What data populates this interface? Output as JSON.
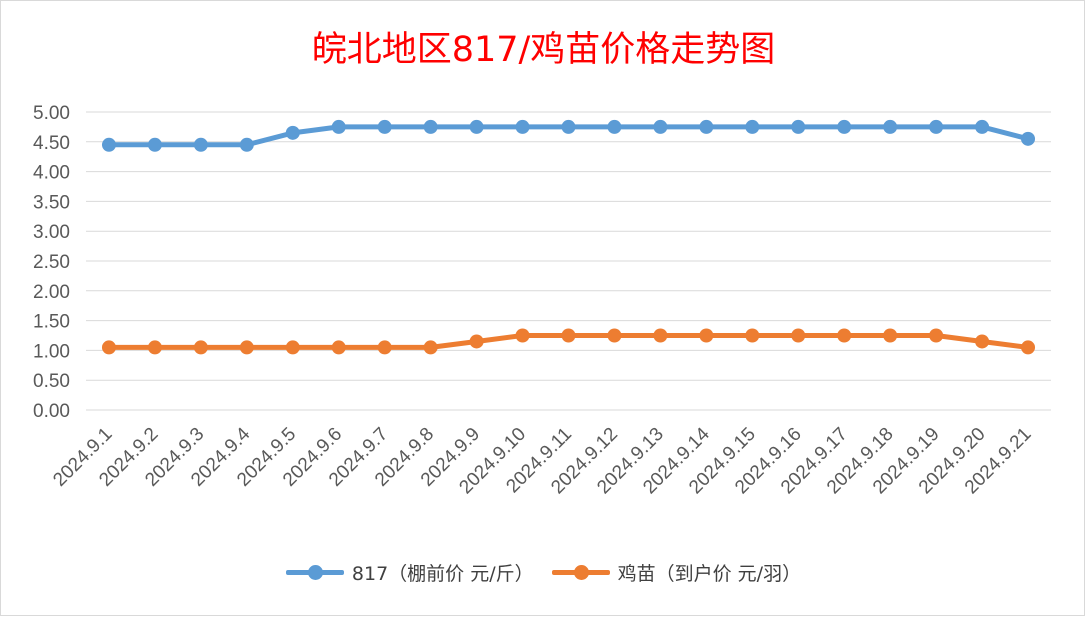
{
  "chart_data": {
    "type": "line",
    "title": "皖北地区817/鸡苗价格走势图",
    "categories": [
      "2024.9.1",
      "2024.9.2",
      "2024.9.3",
      "2024.9.4",
      "2024.9.5",
      "2024.9.6",
      "2024.9.7",
      "2024.9.8",
      "2024.9.9",
      "2024.9.10",
      "2024.9.11",
      "2024.9.12",
      "2024.9.13",
      "2024.9.14",
      "2024.9.15",
      "2024.9.16",
      "2024.9.17",
      "2024.9.18",
      "2024.9.19",
      "2024.9.20",
      "2024.9.21"
    ],
    "y_ticks": [
      "0.00",
      "0.50",
      "1.00",
      "1.50",
      "2.00",
      "2.50",
      "3.00",
      "3.50",
      "4.00",
      "4.50",
      "5.00"
    ],
    "ylim": [
      0,
      5
    ],
    "grid": true,
    "legend_position": "bottom",
    "series": [
      {
        "name": "817（棚前价 元/斤）",
        "color": "#5b9bd5",
        "values": [
          4.45,
          4.45,
          4.45,
          4.45,
          4.65,
          4.75,
          4.75,
          4.75,
          4.75,
          4.75,
          4.75,
          4.75,
          4.75,
          4.75,
          4.75,
          4.75,
          4.75,
          4.75,
          4.75,
          4.75,
          4.55
        ]
      },
      {
        "name": "鸡苗（到户价 元/羽）",
        "color": "#ed7d31",
        "values": [
          1.05,
          1.05,
          1.05,
          1.05,
          1.05,
          1.05,
          1.05,
          1.05,
          1.15,
          1.25,
          1.25,
          1.25,
          1.25,
          1.25,
          1.25,
          1.25,
          1.25,
          1.25,
          1.25,
          1.15,
          1.05
        ]
      }
    ]
  }
}
